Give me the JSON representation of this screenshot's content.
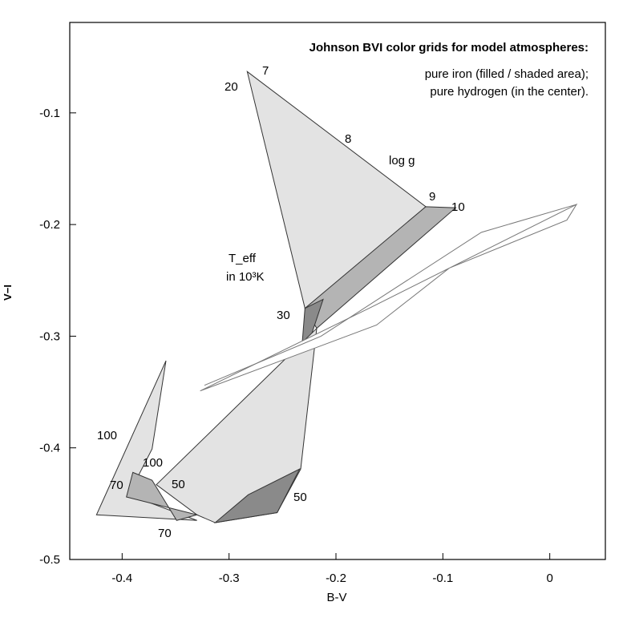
{
  "chart_data": {
    "type": "polygon",
    "title": "Johnson BVI color grids for model atmospheres:",
    "subtitle": [
      "pure iron (filled / shaded area);",
      "pure hydrogen (in the center)."
    ],
    "x_label": "B-V",
    "y_label": "V−I",
    "xlim": [
      -0.449,
      0.052
    ],
    "ylim": [
      -0.5,
      -0.019
    ],
    "xticks": [
      -0.4,
      -0.3,
      -0.2,
      -0.1,
      0
    ],
    "yticks": [
      -0.5,
      -0.4,
      -0.3,
      -0.2,
      -0.1
    ],
    "annotations": [
      "7",
      "20",
      "8",
      "log g",
      "9",
      "10",
      "T_eff",
      "in 10³K",
      "30",
      "100",
      "100",
      "70",
      "50",
      "50",
      "70"
    ],
    "series": [
      {
        "color": "#e3e3e3",
        "x": [
          -0.283,
          -0.116,
          -0.212,
          -0.229
        ],
        "y": [
          -0.063,
          -0.184,
          -0.267,
          -0.275
        ]
      },
      {
        "color": "#b4b4b4",
        "x": [
          -0.116,
          -0.088,
          -0.218,
          -0.229
        ],
        "y": [
          -0.184,
          -0.185,
          -0.293,
          -0.275
        ]
      },
      {
        "color": "#8a8a8a",
        "x": [
          -0.229,
          -0.212,
          -0.231,
          -0.233,
          -0.236
        ],
        "y": [
          -0.275,
          -0.267,
          -0.322,
          -0.419,
          -0.36
        ]
      },
      {
        "color": "#e3e3e3",
        "x": [
          -0.218,
          -0.233,
          -0.255,
          -0.313,
          -0.33,
          -0.368
        ],
        "y": [
          -0.293,
          -0.419,
          -0.458,
          -0.467,
          -0.46,
          -0.433
        ]
      },
      {
        "color": "#8a8a8a",
        "x": [
          -0.282,
          -0.234,
          -0.255,
          -0.313
        ],
        "y": [
          -0.442,
          -0.419,
          -0.458,
          -0.467
        ]
      },
      {
        "color": "#e3e3e3",
        "x": [
          -0.359,
          -0.424,
          -0.33,
          -0.394,
          -0.372
        ],
        "y": [
          -0.322,
          -0.46,
          -0.465,
          -0.442,
          -0.401
        ]
      },
      {
        "color": "#b4b4b4",
        "x": [
          -0.39,
          -0.396,
          -0.33,
          -0.349,
          -0.372
        ],
        "y": [
          -0.422,
          -0.444,
          -0.46,
          -0.465,
          -0.429
        ]
      },
      {
        "color": "#ffffff",
        "x": [
          -0.327,
          -0.169,
          0.025,
          0.016,
          -0.094,
          -0.162
        ],
        "y": [
          -0.349,
          -0.275,
          -0.182,
          -0.196,
          -0.239,
          -0.29
        ]
      },
      {
        "color": "#ffffff",
        "x": [
          -0.323,
          -0.214,
          -0.064,
          0.025
        ],
        "y": [
          -0.344,
          -0.3,
          -0.207,
          -0.182
        ]
      }
    ]
  }
}
